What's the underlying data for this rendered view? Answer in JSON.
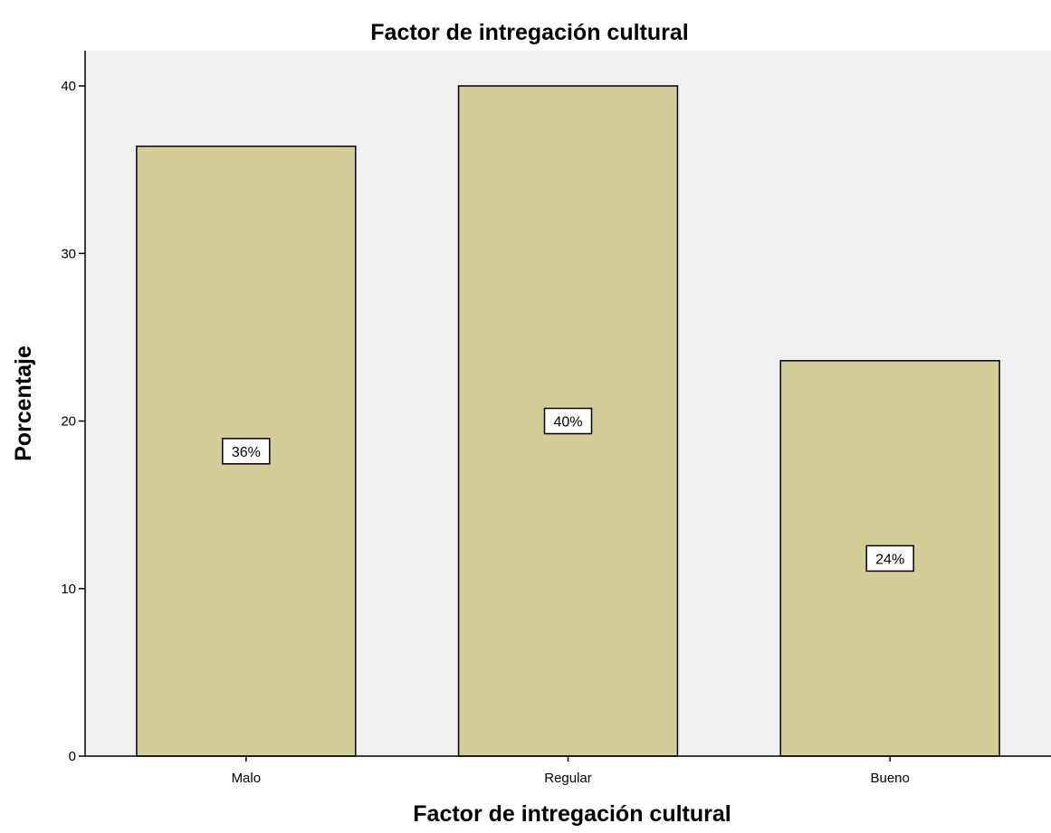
{
  "chart_data": {
    "type": "bar",
    "title": "Factor de intregación cultural",
    "xlabel": "Factor de intregación cultural",
    "ylabel": "Porcentaje",
    "categories": [
      "Malo",
      "Regular",
      "Bueno"
    ],
    "values": [
      36.4,
      40.0,
      23.6
    ],
    "data_labels": [
      "36%",
      "40%",
      "24%"
    ],
    "ylim": [
      0,
      42
    ],
    "yticks": [
      0,
      10,
      20,
      30,
      40
    ],
    "grid": false,
    "legend": "none",
    "colors": {
      "bar_fill": "#d3ce97",
      "bar_stroke": "#000000",
      "plot_background": "#f0f0f0",
      "page_background": "#ffffff"
    }
  }
}
